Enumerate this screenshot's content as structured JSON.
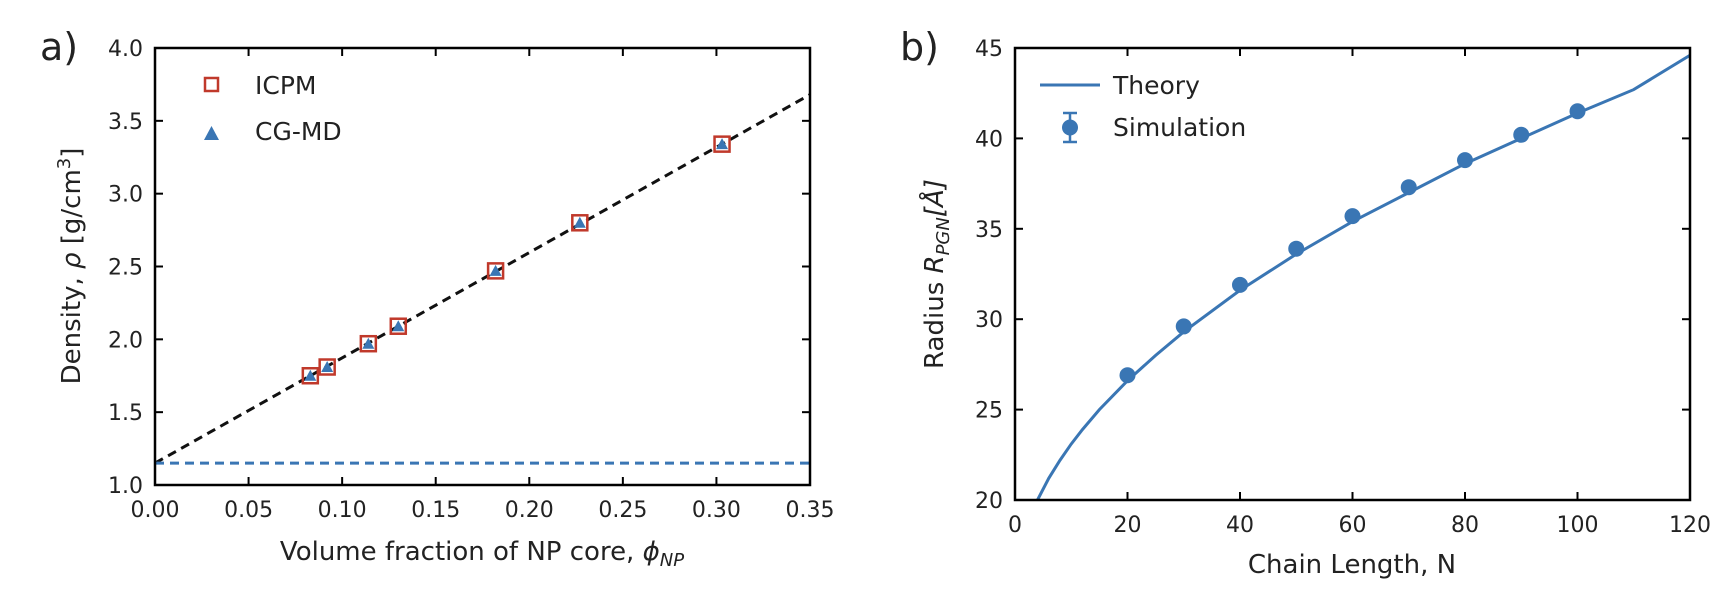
{
  "chart_data": [
    {
      "panel_label": "a)",
      "type": "scatter",
      "title": "",
      "xlabel": "Volume fraction of NP core, ",
      "xlabel_symbol": "ϕ",
      "xlabel_sub": "NP",
      "ylabel": "Density, ",
      "ylabel_symbol": "ρ",
      "ylabel_unit": " [g/cm",
      "ylabel_sup": "3",
      "ylabel_close": "]",
      "xlim": [
        0.0,
        0.35
      ],
      "ylim": [
        1.0,
        4.0
      ],
      "xticks": [
        0.0,
        0.05,
        0.1,
        0.15,
        0.2,
        0.25,
        0.3,
        0.35
      ],
      "xtick_labels": [
        "0.00",
        "0.05",
        "0.10",
        "0.15",
        "0.20",
        "0.25",
        "0.30",
        "0.35"
      ],
      "yticks": [
        1.0,
        1.5,
        2.0,
        2.5,
        3.0,
        3.5,
        4.0
      ],
      "ytick_labels": [
        "1.0",
        "1.5",
        "2.0",
        "2.5",
        "3.0",
        "3.5",
        "4.0"
      ],
      "legend_position": "top-left",
      "series": [
        {
          "name": "ICPM",
          "marker": "open-square",
          "color": "#c0392b",
          "x": [
            0.083,
            0.092,
            0.114,
            0.13,
            0.182,
            0.227,
            0.303
          ],
          "y": [
            1.75,
            1.81,
            1.97,
            2.09,
            2.47,
            2.8,
            3.34
          ]
        },
        {
          "name": "CG-MD",
          "marker": "triangle",
          "color": "#3a76b4",
          "x": [
            0.083,
            0.092,
            0.114,
            0.13,
            0.182,
            0.227,
            0.303
          ],
          "y": [
            1.75,
            1.81,
            1.97,
            2.09,
            2.47,
            2.8,
            3.34
          ]
        }
      ],
      "lines": [
        {
          "name": "linear fit",
          "style": "dashed",
          "color": "#111111",
          "x": [
            0.0,
            0.35
          ],
          "y": [
            1.15,
            3.68
          ]
        },
        {
          "name": "polymer density",
          "style": "dashed",
          "color": "#3a76b4",
          "x": [
            0.0,
            0.35
          ],
          "y": [
            1.15,
            1.15
          ]
        }
      ]
    },
    {
      "panel_label": "b)",
      "type": "scatter",
      "title": "",
      "xlabel": "Chain Length, N",
      "ylabel": "Radius ",
      "ylabel_symbol": "R",
      "ylabel_sub": "PGN",
      "ylabel_unit": "[Å]",
      "xlim": [
        0,
        120
      ],
      "ylim": [
        20,
        45
      ],
      "xticks": [
        0,
        20,
        40,
        60,
        80,
        100,
        120
      ],
      "xtick_labels": [
        "0",
        "20",
        "40",
        "60",
        "80",
        "100",
        "120"
      ],
      "yticks": [
        20,
        25,
        30,
        35,
        40,
        45
      ],
      "ytick_labels": [
        "20",
        "25",
        "30",
        "35",
        "40",
        "45"
      ],
      "legend_position": "top-left",
      "series": [
        {
          "name": "Simulation",
          "marker": "filled-circle-errorbar",
          "color": "#3a76b4",
          "x": [
            20,
            30,
            40,
            50,
            60,
            70,
            80,
            90,
            100
          ],
          "y": [
            26.9,
            29.6,
            31.9,
            33.9,
            35.7,
            37.3,
            38.8,
            40.2,
            41.5
          ]
        }
      ],
      "lines": [
        {
          "name": "Theory",
          "style": "solid",
          "color": "#3a76b4",
          "x": [
            4,
            6,
            8,
            10,
            12,
            15,
            20,
            25,
            30,
            40,
            50,
            60,
            70,
            80,
            90,
            100,
            110,
            120
          ],
          "y": [
            20.0,
            21.2,
            22.2,
            23.1,
            23.9,
            25.0,
            26.6,
            28.0,
            29.3,
            31.6,
            33.6,
            35.4,
            37.0,
            38.6,
            40.0,
            41.4,
            42.7,
            44.6
          ]
        }
      ]
    }
  ]
}
